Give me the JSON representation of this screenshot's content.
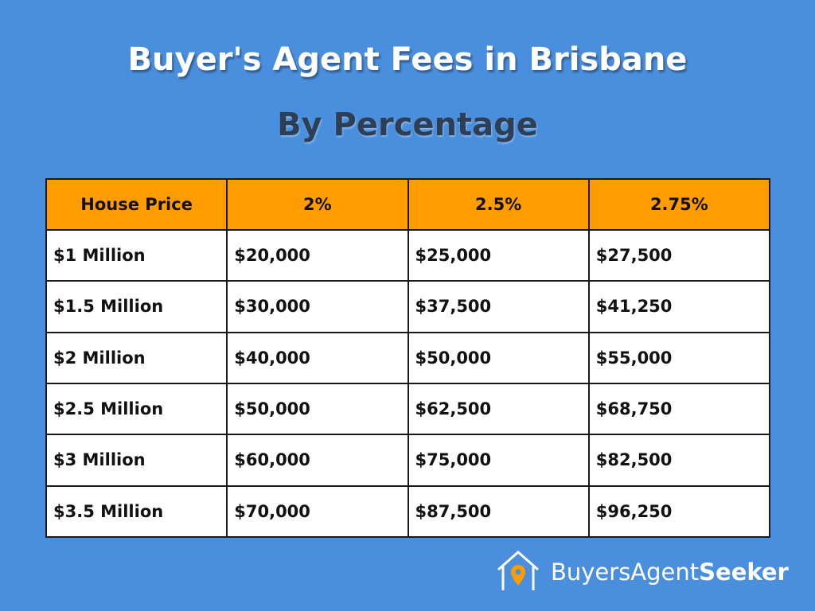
{
  "header": {
    "title": "Buyer's Agent Fees in Brisbane",
    "subtitle": "By Percentage"
  },
  "table": {
    "columns": [
      "House Price",
      "2%",
      "2.5%",
      "2.75%"
    ],
    "rows": [
      [
        "$1 Million",
        "$20,000",
        "$25,000",
        "$27,500"
      ],
      [
        "$1.5 Million",
        "$30,000",
        "$37,500",
        "$41,250"
      ],
      [
        "$2 Million",
        "$40,000",
        "$50,000",
        "$55,000"
      ],
      [
        "$2.5 Million",
        "$50,000",
        "$62,500",
        "$68,750"
      ],
      [
        "$3 Million",
        "$60,000",
        "$75,000",
        "$82,500"
      ],
      [
        "$3.5 Million",
        "$70,000",
        "$87,500",
        "$96,250"
      ]
    ]
  },
  "logo": {
    "name_light": "BuyersAgent",
    "name_bold": "Seeker"
  }
}
